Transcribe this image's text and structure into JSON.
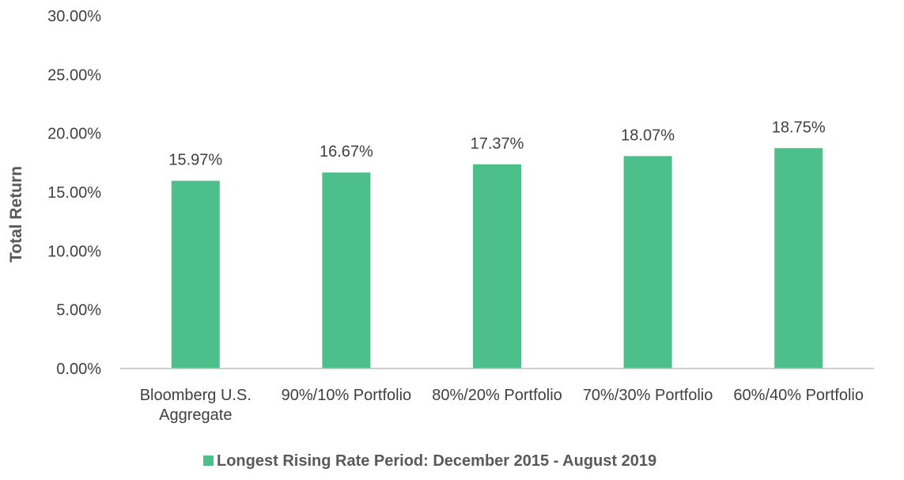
{
  "chart_data": {
    "type": "bar",
    "categories": [
      [
        "Bloomberg U.S.",
        "Aggregate"
      ],
      [
        "90%/10% Portfolio"
      ],
      [
        "80%/20% Portfolio"
      ],
      [
        "70%/30% Portfolio"
      ],
      [
        "60%/40% Portfolio"
      ]
    ],
    "series": [
      {
        "name": "Longest Rising Rate Period: December 2015 - August 2019",
        "values": [
          15.97,
          16.67,
          17.37,
          18.07,
          18.75
        ],
        "color": "#4cbf8a"
      }
    ],
    "data_labels": [
      "15.97%",
      "16.67%",
      "17.37%",
      "18.07%",
      "18.75%"
    ],
    "ylabel": "Total Return",
    "ylim": [
      0,
      30
    ],
    "yticks": [
      0,
      5,
      10,
      15,
      20,
      25,
      30
    ],
    "ytick_labels": [
      "0.00%",
      "5.00%",
      "10.00%",
      "15.00%",
      "20.00%",
      "25.00%",
      "30.00%"
    ],
    "grid": false,
    "legend_position": "bottom-center",
    "colors": {
      "bar": "#4cbf8a",
      "axis": "#bfbfbf",
      "text": "#404040"
    }
  }
}
